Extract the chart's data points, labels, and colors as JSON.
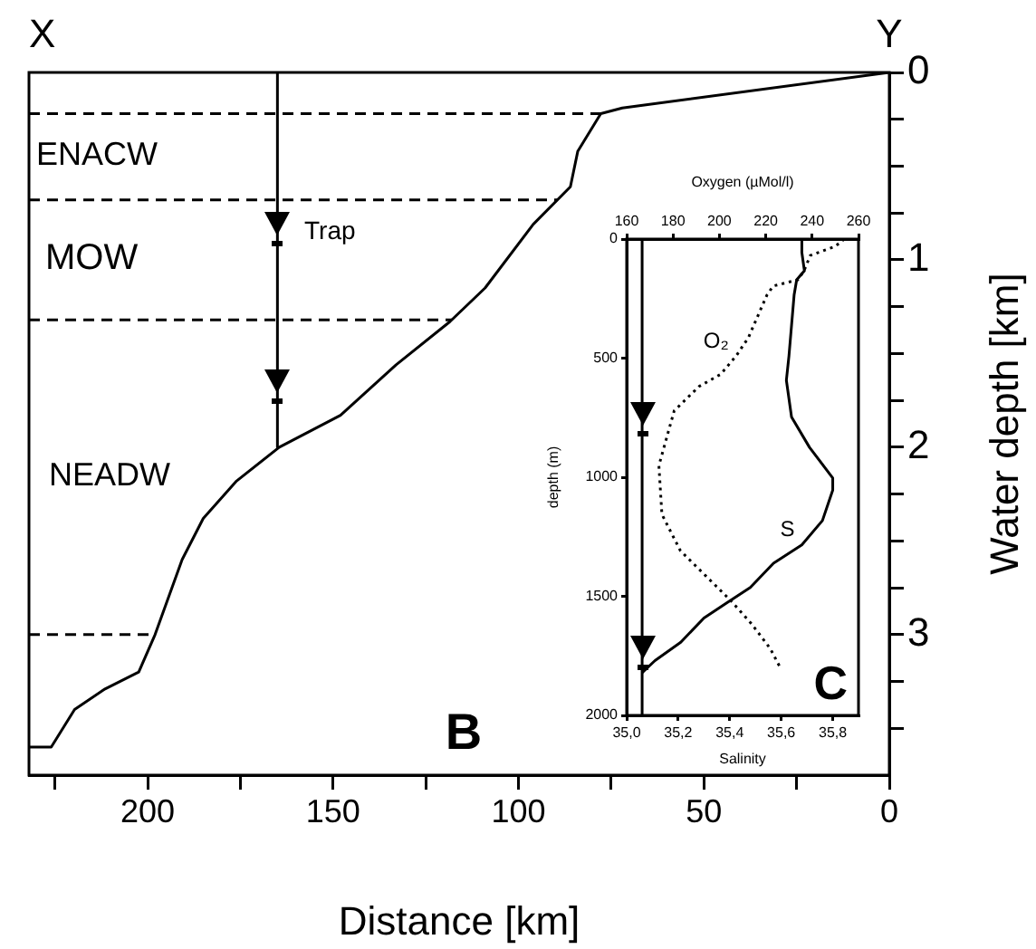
{
  "chart_data": [
    {
      "type": "line",
      "xlabel": "Distance [km]",
      "ylabel": "Water depth [km]",
      "xlim": [
        232,
        0
      ],
      "ylim": [
        3.75,
        0
      ],
      "marker": "none",
      "xticks": [
        {
          "value": 225,
          "label": null
        },
        200,
        {
          "value": 175,
          "label": null
        },
        150,
        {
          "value": 125,
          "label": null
        },
        100,
        {
          "value": 75,
          "label": null
        },
        50,
        {
          "value": 25,
          "label": null
        },
        0
      ],
      "yticks": [
        0,
        {
          "value": 0.25,
          "label": null
        },
        {
          "value": 0.5,
          "label": null
        },
        {
          "value": 0.75,
          "label": null
        },
        1,
        {
          "value": 1.25,
          "label": null
        },
        {
          "value": 1.5,
          "label": null
        },
        {
          "value": 1.75,
          "label": null
        },
        2,
        {
          "value": 2.25,
          "label": null
        },
        {
          "value": 2.5,
          "label": null
        },
        {
          "value": 2.75,
          "label": null
        },
        3,
        {
          "value": 3.25,
          "label": null
        },
        {
          "value": 3.5,
          "label": null
        }
      ],
      "series": [
        {
          "color": "#000000",
          "x": [
            0,
            72,
            77.8,
            84,
            86,
            96,
            109,
            118.5,
            133,
            148,
            164.5,
            176,
            185,
            190.7,
            198,
            202.4,
            211.5,
            219.7,
            226,
            232
          ],
          "values": [
            0,
            0.19,
            0.22,
            0.42,
            0.61,
            0.81,
            1.15,
            1.33,
            1.56,
            1.83,
            2.0,
            2.18,
            2.38,
            2.6,
            3.0,
            3.2,
            3.29,
            3.4,
            3.6,
            3.6
          ]
        },
        {
          "color": "#000000",
          "x": [
            165,
            165
          ],
          "values": [
            0,
            2.0
          ]
        }
      ],
      "ref_lines": [
        {
          "axis": "y",
          "value": 0.22,
          "line_style": "dashed"
        },
        {
          "axis": "y",
          "value": 0.68,
          "line_style": "dashed"
        },
        {
          "axis": "y",
          "value": 1.32,
          "line_style": "dashed"
        },
        {
          "axis": "y",
          "value": 3.0,
          "line_style": "dashed"
        }
      ],
      "annotations": [
        "X",
        "Y",
        "ENACW",
        "MOW",
        "NEADW",
        "Trap",
        "B"
      ]
    },
    {
      "type": "line",
      "xlabel": "Salinity",
      "x2label": "Oxygen (µMol/l)",
      "ylabel": "depth (m)",
      "marker": "none",
      "xlim": [
        35.0,
        35.9
      ],
      "xticks": [
        {
          "value": 35.0,
          "label": "35,0"
        },
        {
          "value": 35.2,
          "label": "35,2"
        },
        {
          "value": 35.4,
          "label": "35,4"
        },
        {
          "value": 35.6,
          "label": "35,6"
        },
        {
          "value": 35.8,
          "label": "35,8"
        }
      ],
      "x2lim": [
        160,
        260
      ],
      "x2ticks": [
        160,
        180,
        200,
        220,
        240,
        260
      ],
      "ylim": [
        2000,
        0
      ],
      "yticks": [
        0,
        500,
        1000,
        1500,
        2000
      ],
      "series": [
        {
          "name": "O₂",
          "axis": "x2",
          "color": "#000000",
          "line_style": "dotted",
          "x": [
            253.9,
            249.9,
            239.2,
            236.5,
            233.9,
            223.2,
            220.5,
            212.5,
            207.2,
            200.5,
            191.2,
            180.5,
            173.9,
            175.2,
            183.2,
            193.9,
            204.5,
            213.9,
            221.9,
            226.7
          ],
          "values": [
            0,
            31,
            69,
            133,
            171,
            197,
            235,
            414,
            491,
            568,
            619,
            721,
            951,
            1156,
            1309,
            1412,
            1514,
            1616,
            1719,
            1808
          ]
        },
        {
          "name": "S",
          "color": "#000000",
          "x": [
            35.68,
            35.68,
            35.69,
            35.66,
            35.65,
            35.63,
            35.62,
            35.64,
            35.71,
            35.8,
            35.8,
            35.76,
            35.68,
            35.57,
            35.48,
            35.39,
            35.3,
            35.21,
            35.11,
            35.06
          ],
          "values": [
            0,
            56,
            133,
            171,
            235,
            491,
            593,
            747,
            875,
            1003,
            1054,
            1182,
            1284,
            1361,
            1463,
            1527,
            1591,
            1693,
            1770,
            1821
          ]
        },
        {
          "color": "#000000",
          "x": [
            35.06,
            35.06
          ],
          "values": [
            0,
            2000
          ]
        }
      ],
      "annotations": [
        "C"
      ]
    }
  ]
}
